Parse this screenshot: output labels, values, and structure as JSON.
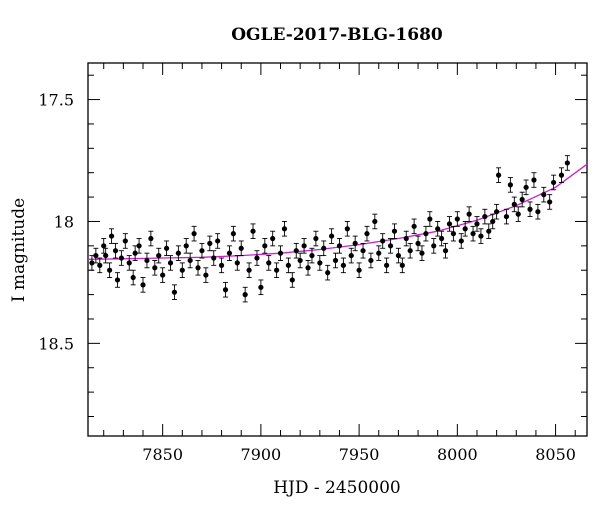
{
  "chart_data": {
    "type": "scatter",
    "title": "OGLE-2017-BLG-1680",
    "xlabel": "HJD - 2450000",
    "ylabel": "I magnitude",
    "xlim": [
      7812,
      8066
    ],
    "ylim": [
      18.88,
      17.35
    ],
    "y_inverted": true,
    "xticks": [
      7850,
      7900,
      7950,
      8000,
      8050
    ],
    "xtick_labels": [
      "7850",
      "7900",
      "7950",
      "8000",
      "8050"
    ],
    "yticks": [
      17.5,
      18,
      18.5
    ],
    "ytick_labels": [
      "17.5",
      "18",
      "18.5"
    ],
    "grid": false,
    "colors": {
      "points": "#000000",
      "model": "#cc22cc"
    },
    "series": [
      {
        "style": "points-with-errorbars",
        "error": 0.03,
        "points": [
          [
            7814,
            18.17
          ],
          [
            7816,
            18.14
          ],
          [
            7818,
            18.18
          ],
          [
            7820,
            18.1
          ],
          [
            7821,
            18.14
          ],
          [
            7823,
            18.2
          ],
          [
            7824,
            18.06
          ],
          [
            7826,
            18.12
          ],
          [
            7827,
            18.24
          ],
          [
            7829,
            18.15
          ],
          [
            7831,
            18.08
          ],
          [
            7833,
            18.17
          ],
          [
            7835,
            18.23
          ],
          [
            7836,
            18.13
          ],
          [
            7838,
            18.1
          ],
          [
            7840,
            18.26
          ],
          [
            7842,
            18.16
          ],
          [
            7844,
            18.07
          ],
          [
            7846,
            18.19
          ],
          [
            7848,
            18.14
          ],
          [
            7850,
            18.22
          ],
          [
            7852,
            18.11
          ],
          [
            7854,
            18.17
          ],
          [
            7856,
            18.29
          ],
          [
            7858,
            18.13
          ],
          [
            7860,
            18.2
          ],
          [
            7862,
            18.1
          ],
          [
            7864,
            18.16
          ],
          [
            7866,
            18.05
          ],
          [
            7868,
            18.19
          ],
          [
            7870,
            18.12
          ],
          [
            7872,
            18.22
          ],
          [
            7874,
            18.09
          ],
          [
            7876,
            18.15
          ],
          [
            7878,
            18.08
          ],
          [
            7880,
            18.18
          ],
          [
            7882,
            18.28
          ],
          [
            7884,
            18.13
          ],
          [
            7886,
            18.05
          ],
          [
            7888,
            18.17
          ],
          [
            7890,
            18.11
          ],
          [
            7892,
            18.3
          ],
          [
            7894,
            18.2
          ],
          [
            7896,
            18.04
          ],
          [
            7898,
            18.15
          ],
          [
            7900,
            18.27
          ],
          [
            7902,
            18.1
          ],
          [
            7904,
            18.17
          ],
          [
            7906,
            18.07
          ],
          [
            7908,
            18.2
          ],
          [
            7910,
            18.13
          ],
          [
            7912,
            18.03
          ],
          [
            7914,
            18.18
          ],
          [
            7916,
            18.24
          ],
          [
            7918,
            18.12
          ],
          [
            7920,
            18.16
          ],
          [
            7922,
            18.1
          ],
          [
            7924,
            18.19
          ],
          [
            7926,
            18.14
          ],
          [
            7928,
            18.07
          ],
          [
            7930,
            18.17
          ],
          [
            7932,
            18.11
          ],
          [
            7934,
            18.21
          ],
          [
            7936,
            18.06
          ],
          [
            7938,
            18.16
          ],
          [
            7940,
            18.1
          ],
          [
            7942,
            18.18
          ],
          [
            7944,
            18.03
          ],
          [
            7946,
            18.14
          ],
          [
            7948,
            18.09
          ],
          [
            7950,
            18.2
          ],
          [
            7952,
            18.12
          ],
          [
            7954,
            18.05
          ],
          [
            7956,
            18.16
          ],
          [
            7958,
            18.0
          ],
          [
            7960,
            18.13
          ],
          [
            7962,
            18.08
          ],
          [
            7964,
            18.18
          ],
          [
            7966,
            18.1
          ],
          [
            7968,
            18.04
          ],
          [
            7970,
            18.14
          ],
          [
            7972,
            18.18
          ],
          [
            7974,
            18.07
          ],
          [
            7976,
            18.12
          ],
          [
            7978,
            18.02
          ],
          [
            7980,
            18.09
          ],
          [
            7982,
            18.13
          ],
          [
            7984,
            18.05
          ],
          [
            7986,
            17.99
          ],
          [
            7988,
            18.1
          ],
          [
            7990,
            18.03
          ],
          [
            7992,
            18.07
          ],
          [
            7994,
            18.12
          ],
          [
            7996,
            18.01
          ],
          [
            7998,
            18.05
          ],
          [
            8000,
            17.99
          ],
          [
            8002,
            18.08
          ],
          [
            8004,
            18.03
          ],
          [
            8006,
            17.97
          ],
          [
            8008,
            18.05
          ],
          [
            8010,
            18.01
          ],
          [
            8012,
            18.06
          ],
          [
            8014,
            17.98
          ],
          [
            8016,
            18.04
          ],
          [
            8018,
            18.0
          ],
          [
            8020,
            17.96
          ],
          [
            8021,
            17.81
          ],
          [
            8025,
            17.98
          ],
          [
            8027,
            17.85
          ],
          [
            8029,
            17.93
          ],
          [
            8031,
            17.97
          ],
          [
            8033,
            17.91
          ],
          [
            8035,
            17.86
          ],
          [
            8037,
            17.95
          ],
          [
            8039,
            17.83
          ],
          [
            8041,
            17.96
          ],
          [
            8044,
            17.89
          ],
          [
            8047,
            17.92
          ],
          [
            8049,
            17.84
          ],
          [
            8053,
            17.81
          ],
          [
            8056,
            17.76
          ]
        ]
      },
      {
        "style": "model-line",
        "x": [
          7812,
          7830,
          7850,
          7870,
          7890,
          7910,
          7930,
          7950,
          7970,
          7990,
          8010,
          8030,
          8050,
          8066
        ],
        "y": [
          18.155,
          18.153,
          18.15,
          18.147,
          18.14,
          18.13,
          18.115,
          18.095,
          18.07,
          18.04,
          17.995,
          17.935,
          17.86,
          17.765
        ]
      }
    ]
  }
}
